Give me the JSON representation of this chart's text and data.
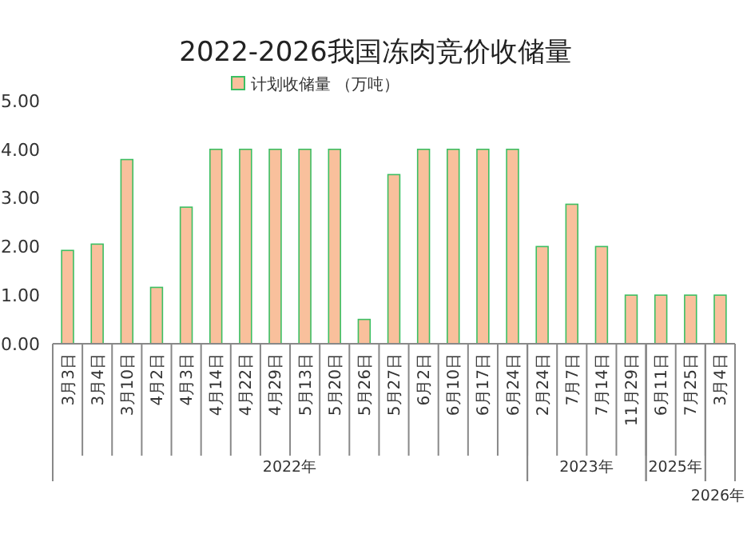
{
  "chart_data": {
    "type": "bar",
    "title": "2022-2026我国冻肉竞价收储量",
    "categories": [
      "3月3日",
      "3月4日",
      "3月10日",
      "4月2日",
      "4月3日",
      "4月14日",
      "4月22日",
      "4月29日",
      "5月13日",
      "5月20日",
      "5月26日",
      "5月27日",
      "6月2日",
      "6月10日",
      "6月17日",
      "6月24日",
      "2月24日",
      "7月7日",
      "7月14日",
      "11月29日",
      "6月11日",
      "7月25日",
      "3月4日"
    ],
    "series": [
      {
        "name": "计划收储量 （万吨）",
        "color": "#f9c09c",
        "values": [
          1.92,
          2.05,
          3.79,
          1.16,
          2.81,
          4,
          4,
          4,
          4,
          4,
          0.5,
          3.48,
          4,
          4,
          4,
          4,
          2,
          2.87,
          2,
          1,
          1,
          1,
          1
        ]
      }
    ],
    "ylim": [
      0,
      5
    ],
    "yticks": [
      {
        "value": 0,
        "label": "0.00"
      },
      {
        "value": 1,
        "label": "1.00"
      },
      {
        "value": 2,
        "label": "2.00"
      },
      {
        "value": 3,
        "label": "3.00"
      },
      {
        "value": 4,
        "label": "4.00"
      },
      {
        "value": 5,
        "label": "5.00"
      }
    ],
    "annotations": [
      "2022年",
      "2023年",
      "2025年",
      "2026年"
    ],
    "legend": "top"
  }
}
